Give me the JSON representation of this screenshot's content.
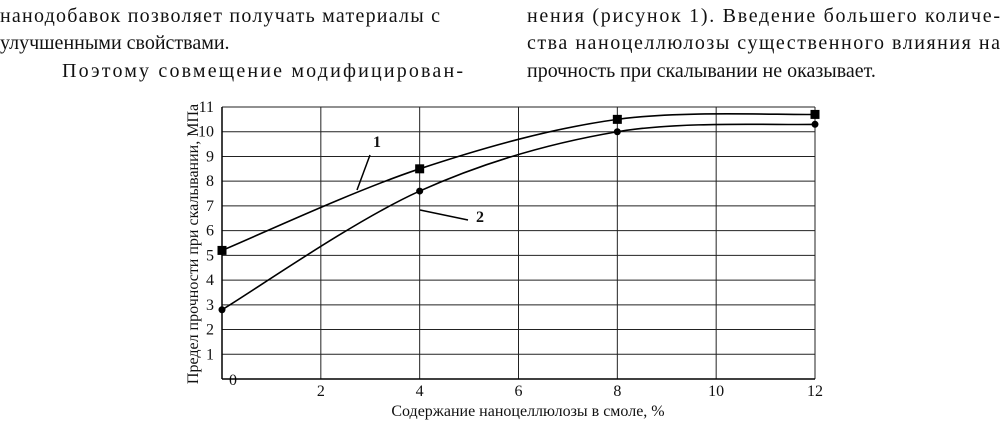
{
  "text": {
    "left_column": [
      "нанодобавок позволяет получать материалы с",
      "улучшенными свойствами.",
      "Поэтому совмещение модифицирован-"
    ],
    "right_column": [
      "нения (рисунок 1). Введение большего количе-",
      "ства наноцеллюлозы существенного влияния на",
      "прочность при скалывании не оказывает."
    ]
  },
  "chart_data": {
    "type": "line",
    "x_label": "Содержание наноцеллюлозы в смоле, %",
    "y_label": "Предел прочности при скалывании, МПа",
    "x": [
      0,
      4,
      8,
      12
    ],
    "series": [
      {
        "name": "1",
        "color": "#000000",
        "marker": "square",
        "values": [
          5.2,
          8.5,
          10.5,
          10.7
        ]
      },
      {
        "name": "2",
        "color": "#000000",
        "marker": "circle",
        "values": [
          2.8,
          7.6,
          10.0,
          10.3
        ]
      }
    ],
    "xlim": [
      0,
      12
    ],
    "xticks": [
      2,
      4,
      6,
      8,
      10,
      12
    ],
    "ylim": [
      0,
      11
    ],
    "yticks": [
      0,
      1,
      2,
      3,
      4,
      5,
      6,
      7,
      8,
      9,
      10,
      11
    ],
    "grid": true
  }
}
